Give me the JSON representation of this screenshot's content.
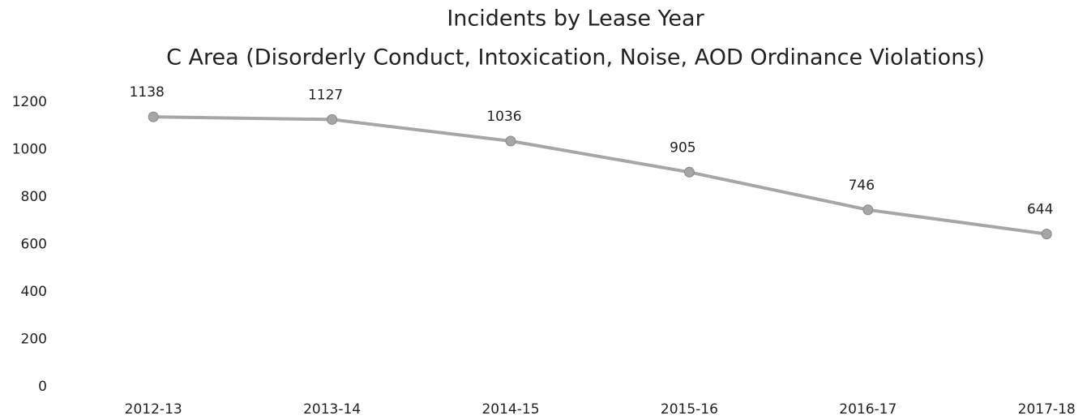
{
  "chart_data": {
    "type": "line",
    "title": "Incidents by Lease Year",
    "subtitle": "C Area (Disorderly Conduct, Intoxication, Noise, AOD Ordinance Violations)",
    "categories": [
      "2012-13",
      "2013-14",
      "2014-15",
      "2015-16",
      "2016-17",
      "2017-18"
    ],
    "values": [
      1138,
      1127,
      1036,
      905,
      746,
      644
    ],
    "color": "#a6a6a6",
    "ylim": [
      0,
      1200
    ],
    "yticks": [
      0,
      200,
      400,
      600,
      800,
      1000,
      1200
    ],
    "grid": false
  }
}
